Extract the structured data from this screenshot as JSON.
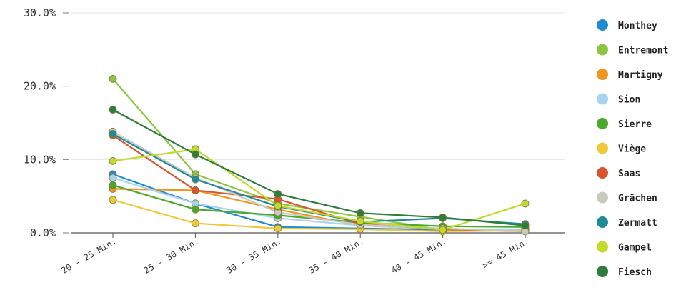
{
  "chart_data": {
    "type": "line",
    "categories": [
      "20 - 25 Min.",
      "25 - 30 Min.",
      "30 - 35 Min.",
      "35 - 40 Min.",
      "40 - 45 Min.",
      ">= 45 Min."
    ],
    "y_ticks": [
      "0.0%",
      "10.0%",
      "20.0%",
      "30.0%"
    ],
    "ylim": [
      0,
      30
    ],
    "y_unit": "%",
    "grid": true,
    "legend_position": "right",
    "series": [
      {
        "name": "Monthey",
        "color": "#1f8bd2",
        "values": [
          8.0,
          4.0,
          0.8,
          0.6,
          0.4,
          0.3
        ]
      },
      {
        "name": "Entremont",
        "color": "#8cc63f",
        "values": [
          21.0,
          8.0,
          4.0,
          2.2,
          0.4,
          0.5
        ]
      },
      {
        "name": "Martigny",
        "color": "#f0961e",
        "values": [
          6.0,
          5.8,
          3.2,
          1.0,
          0.5,
          0.3
        ]
      },
      {
        "name": "Sion",
        "color": "#a9d4ef",
        "values": [
          7.5,
          4.0,
          2.0,
          1.0,
          0.5,
          0.5
        ]
      },
      {
        "name": "Sierre",
        "color": "#4aa82a",
        "values": [
          6.5,
          3.2,
          2.4,
          1.4,
          0.9,
          0.8
        ]
      },
      {
        "name": "Viège",
        "color": "#f0c93a",
        "values": [
          4.5,
          1.3,
          0.6,
          0.5,
          0.2,
          0.3
        ]
      },
      {
        "name": "Saas",
        "color": "#d9532e",
        "values": [
          13.3,
          5.8,
          4.6,
          1.2,
          0.5,
          0.2
        ]
      },
      {
        "name": "Grächen",
        "color": "#c9c9bf",
        "values": [
          13.8,
          7.5,
          2.8,
          1.1,
          0.6,
          0.2
        ]
      },
      {
        "name": "Zermatt",
        "color": "#1e8a9a",
        "values": [
          13.5,
          7.3,
          3.6,
          1.5,
          2.0,
          1.2
        ]
      },
      {
        "name": "Gampel",
        "color": "#c3d92b",
        "values": [
          9.8,
          11.4,
          3.7,
          1.6,
          0.4,
          4.0
        ]
      },
      {
        "name": "Fiesch",
        "color": "#2e7d3a",
        "values": [
          16.8,
          10.7,
          5.3,
          2.7,
          2.1,
          1.0
        ]
      }
    ]
  }
}
